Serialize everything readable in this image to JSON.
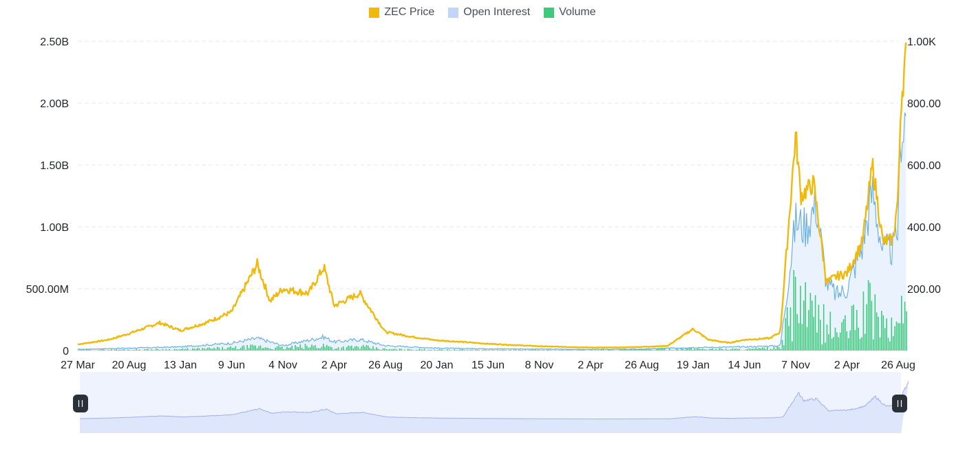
{
  "legend": [
    {
      "label": "ZEC Price",
      "color": "#f0b90b"
    },
    {
      "label": "Open Interest",
      "color": "#c3d6fa"
    },
    {
      "label": "Volume",
      "color": "#3dca7c"
    }
  ],
  "colors": {
    "price_line": "#f0b90b",
    "oi_line": "#6aafe6",
    "oi_fill": "#eaf3fd",
    "volume": "#3dca7c",
    "grid": "#e8e9eb",
    "navigator_fill": "#dde6fb",
    "navigator_bg": "#eef3fd",
    "navigator_line": "#9fb1ea",
    "handle": "#2b3139"
  },
  "chart_data": {
    "type": "line",
    "title": "",
    "x": [
      "27 Mar",
      "20 Aug",
      "13 Jan",
      "9 Jun",
      "4 Nov",
      "2 Apr",
      "26 Aug",
      "20 Jan",
      "15 Jun",
      "8 Nov",
      "2 Apr",
      "26 Aug",
      "19 Jan",
      "14 Jun",
      "7 Nov",
      "2 Apr",
      "26 Aug"
    ],
    "x_ticks": [
      "27 Mar",
      "20 Aug",
      "13 Jan",
      "9 Jun",
      "4 Nov",
      "2 Apr",
      "26 Aug",
      "20 Jan",
      "15 Jun",
      "8 Nov",
      "2 Apr",
      "26 Aug",
      "19 Jan",
      "14 Jun",
      "7 Nov",
      "2 Apr",
      "26 Aug"
    ],
    "y_left_ticks": [
      "0",
      "500.00M",
      "1.00B",
      "1.50B",
      "2.00B",
      "2.50B"
    ],
    "y_right_ticks": [
      "200.00",
      "400.00",
      "600.00",
      "800.00",
      "1.00K"
    ],
    "ylim_left": [
      0,
      2500000000
    ],
    "ylim_right": [
      0,
      1000
    ],
    "grid": true,
    "legend_position": "top",
    "series": [
      {
        "name": "ZEC Price",
        "axis": "right",
        "type": "line",
        "points": [
          [
            0,
            20
          ],
          [
            0.6,
            35
          ],
          [
            1,
            55
          ],
          [
            1.6,
            90
          ],
          [
            2,
            65
          ],
          [
            2.5,
            90
          ],
          [
            3,
            125
          ],
          [
            3.5,
            280
          ],
          [
            3.75,
            160
          ],
          [
            4,
            200
          ],
          [
            4.5,
            185
          ],
          [
            4.8,
            270
          ],
          [
            5,
            145
          ],
          [
            5.5,
            185
          ],
          [
            6,
            60
          ],
          [
            6.5,
            45
          ],
          [
            7,
            33
          ],
          [
            7.5,
            28
          ],
          [
            8,
            22
          ],
          [
            8.5,
            18
          ],
          [
            9,
            14
          ],
          [
            9.5,
            12
          ],
          [
            10,
            10
          ],
          [
            10.5,
            10
          ],
          [
            11,
            12
          ],
          [
            11.5,
            15
          ],
          [
            12,
            70
          ],
          [
            12.3,
            35
          ],
          [
            12.7,
            25
          ],
          [
            13,
            35
          ],
          [
            13.5,
            40
          ],
          [
            13.7,
            60
          ],
          [
            14,
            700
          ],
          [
            14.1,
            500
          ],
          [
            14.35,
            540
          ],
          [
            14.6,
            220
          ],
          [
            14.8,
            240
          ],
          [
            15,
            250
          ],
          [
            15.3,
            350
          ],
          [
            15.5,
            600
          ],
          [
            15.7,
            350
          ],
          [
            15.9,
            360
          ],
          [
            16,
            500
          ],
          [
            16.05,
            800
          ],
          [
            16.1,
            880
          ],
          [
            16.15,
            950
          ]
        ]
      },
      {
        "name": "Open Interest",
        "axis": "left",
        "type": "area",
        "points": [
          [
            0,
            10000000
          ],
          [
            1,
            20000000
          ],
          [
            2,
            30000000
          ],
          [
            3,
            60000000
          ],
          [
            3.5,
            100000000
          ],
          [
            4,
            40000000
          ],
          [
            4.8,
            110000000
          ],
          [
            5,
            70000000
          ],
          [
            5.5,
            90000000
          ],
          [
            6,
            40000000
          ],
          [
            7,
            20000000
          ],
          [
            8,
            15000000
          ],
          [
            9,
            12000000
          ],
          [
            10,
            10000000
          ],
          [
            11,
            12000000
          ],
          [
            12,
            25000000
          ],
          [
            13,
            30000000
          ],
          [
            13.7,
            40000000
          ],
          [
            14,
            1050000000
          ],
          [
            14.2,
            1000000000
          ],
          [
            14.4,
            1200000000
          ],
          [
            14.6,
            550000000
          ],
          [
            14.8,
            450000000
          ],
          [
            15,
            500000000
          ],
          [
            15.3,
            850000000
          ],
          [
            15.5,
            1300000000
          ],
          [
            15.7,
            800000000
          ],
          [
            15.9,
            820000000
          ],
          [
            16,
            1000000000
          ],
          [
            16.05,
            1800000000
          ],
          [
            16.15,
            1900000000
          ]
        ]
      },
      {
        "name": "Volume",
        "axis": "left",
        "type": "bar",
        "points": [
          [
            0,
            5000000
          ],
          [
            2,
            10000000
          ],
          [
            3,
            20000000
          ],
          [
            3.5,
            30000000
          ],
          [
            4,
            20000000
          ],
          [
            4.8,
            40000000
          ],
          [
            5,
            20000000
          ],
          [
            5.5,
            30000000
          ],
          [
            6,
            10000000
          ],
          [
            8,
            5000000
          ],
          [
            10,
            5000000
          ],
          [
            12,
            15000000
          ],
          [
            13,
            10000000
          ],
          [
            13.7,
            20000000
          ],
          [
            14,
            450000000
          ],
          [
            14.2,
            300000000
          ],
          [
            14.4,
            250000000
          ],
          [
            14.6,
            200000000
          ],
          [
            14.8,
            150000000
          ],
          [
            15,
            180000000
          ],
          [
            15.3,
            300000000
          ],
          [
            15.5,
            350000000
          ],
          [
            15.7,
            200000000
          ],
          [
            15.9,
            150000000
          ],
          [
            16,
            220000000
          ],
          [
            16.05,
            550000000
          ],
          [
            16.15,
            300000000
          ]
        ]
      }
    ]
  }
}
